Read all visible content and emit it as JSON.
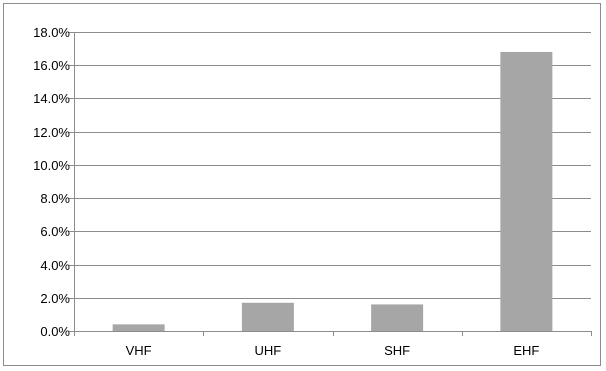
{
  "chart_data": {
    "type": "bar",
    "title": "",
    "xlabel": "",
    "ylabel": "",
    "categories": [
      "VHF",
      "UHF",
      "SHF",
      "EHF"
    ],
    "values": [
      0.4,
      1.7,
      1.6,
      16.8
    ],
    "ylim": [
      0,
      18
    ],
    "y_ticks": [
      0,
      2,
      4,
      6,
      8,
      10,
      12,
      14,
      16,
      18
    ],
    "y_tick_labels": [
      "0.0%",
      "2.0%",
      "4.0%",
      "6.0%",
      "8.0%",
      "10.0%",
      "12.0%",
      "14.0%",
      "16.0%",
      "18.0%"
    ],
    "grid": true,
    "legend": "none",
    "bar_color": "#a6a6a6",
    "gridline_color": "#8c8c8c"
  }
}
